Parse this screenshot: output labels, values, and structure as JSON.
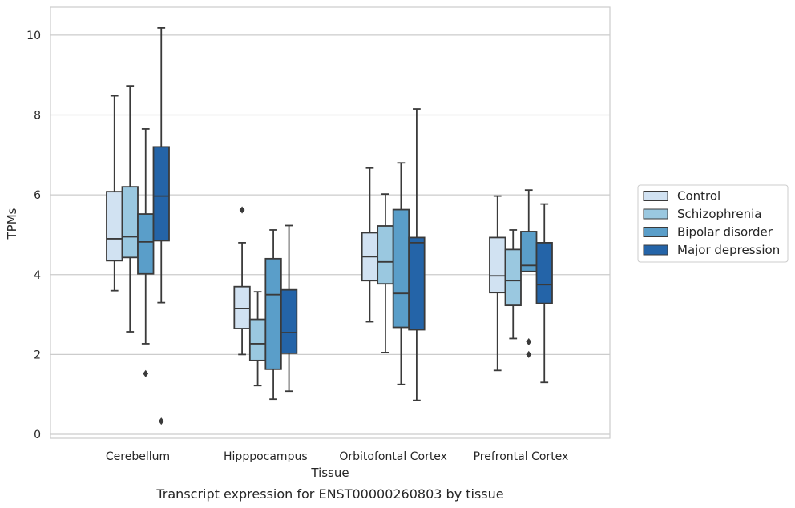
{
  "chart_data": {
    "type": "box",
    "xlabel": "Tissue",
    "ylabel": "TPMs",
    "caption": "Transcript expression for ENST00000260803 by tissue",
    "ylim": [
      -0.1,
      10.7
    ],
    "yticks": [
      0,
      2,
      4,
      6,
      8,
      10
    ],
    "grid": "horizontal",
    "legend_position": "right",
    "categories": [
      "Cerebellum",
      "Hipppocampus",
      "Orbitofontal Cortex",
      "Prefrontal Cortex"
    ],
    "series": [
      {
        "name": "Control",
        "color": "#d1e2f2",
        "boxes": [
          {
            "whisker_low": 3.6,
            "q1": 4.35,
            "median": 4.9,
            "q3": 6.08,
            "whisker_high": 8.48,
            "outliers": []
          },
          {
            "whisker_low": 2.0,
            "q1": 2.65,
            "median": 3.15,
            "q3": 3.7,
            "whisker_high": 4.8,
            "outliers": [
              5.62
            ]
          },
          {
            "whisker_low": 2.82,
            "q1": 3.85,
            "median": 4.45,
            "q3": 5.05,
            "whisker_high": 6.67,
            "outliers": []
          },
          {
            "whisker_low": 1.6,
            "q1": 3.55,
            "median": 3.97,
            "q3": 4.93,
            "whisker_high": 5.97,
            "outliers": []
          }
        ]
      },
      {
        "name": "Schizophrenia",
        "color": "#9ac8e0",
        "boxes": [
          {
            "whisker_low": 2.57,
            "q1": 4.43,
            "median": 4.95,
            "q3": 6.2,
            "whisker_high": 8.73,
            "outliers": []
          },
          {
            "whisker_low": 1.22,
            "q1": 1.85,
            "median": 2.27,
            "q3": 2.88,
            "whisker_high": 3.57,
            "outliers": []
          },
          {
            "whisker_low": 2.05,
            "q1": 3.77,
            "median": 4.32,
            "q3": 5.22,
            "whisker_high": 6.02,
            "outliers": []
          },
          {
            "whisker_low": 2.4,
            "q1": 3.23,
            "median": 3.85,
            "q3": 4.63,
            "whisker_high": 5.12,
            "outliers": []
          }
        ]
      },
      {
        "name": "Bipolar disorder",
        "color": "#5a9ec9",
        "boxes": [
          {
            "whisker_low": 2.27,
            "q1": 4.02,
            "median": 4.82,
            "q3": 5.52,
            "whisker_high": 7.65,
            "outliers": [
              1.52
            ]
          },
          {
            "whisker_low": 0.88,
            "q1": 1.63,
            "median": 3.5,
            "q3": 4.4,
            "whisker_high": 5.12,
            "outliers": []
          },
          {
            "whisker_low": 1.25,
            "q1": 2.68,
            "median": 3.53,
            "q3": 5.63,
            "whisker_high": 6.8,
            "outliers": []
          },
          {
            "whisker_low": 4.08,
            "q1": 4.08,
            "median": 4.23,
            "q3": 5.08,
            "whisker_high": 6.12,
            "outliers": [
              2.32,
              2.0
            ]
          }
        ]
      },
      {
        "name": "Major depression",
        "color": "#2464a8",
        "boxes": [
          {
            "whisker_low": 3.3,
            "q1": 4.85,
            "median": 5.97,
            "q3": 7.2,
            "whisker_high": 10.18,
            "outliers": [
              0.33
            ]
          },
          {
            "whisker_low": 1.08,
            "q1": 2.03,
            "median": 2.55,
            "q3": 3.62,
            "whisker_high": 5.23,
            "outliers": []
          },
          {
            "whisker_low": 0.85,
            "q1": 2.62,
            "median": 4.8,
            "q3": 4.93,
            "whisker_high": 8.15,
            "outliers": []
          },
          {
            "whisker_low": 1.3,
            "q1": 3.28,
            "median": 3.75,
            "q3": 4.8,
            "whisker_high": 5.77,
            "outliers": []
          }
        ]
      }
    ]
  }
}
